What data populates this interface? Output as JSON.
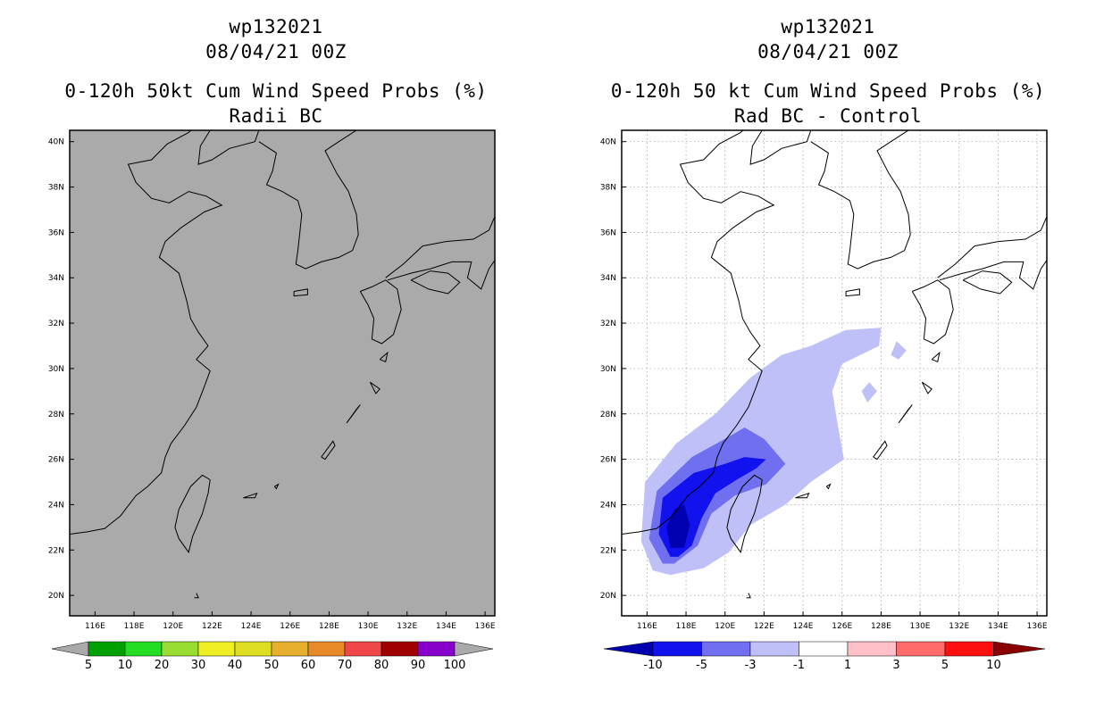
{
  "left_panel": {
    "storm_id": "wp132021",
    "datetime": "08/04/21 00Z",
    "product": "0-120h 50kt Cum Wind Speed Probs (%)",
    "subtitle": "Radii BC",
    "background_color": "#aaaaaa",
    "colorbar": {
      "labels": [
        "5",
        "10",
        "20",
        "30",
        "40",
        "50",
        "60",
        "70",
        "80",
        "90",
        "100"
      ],
      "colors": [
        "#00a000",
        "#22dd22",
        "#99dd33",
        "#eeee22",
        "#dddd22",
        "#e6b02e",
        "#e88a2a",
        "#f04848",
        "#a00000",
        "#8800cc"
      ]
    }
  },
  "right_panel": {
    "storm_id": "wp132021",
    "datetime": "08/04/21 00Z",
    "product": "0-120h 50 kt Cum Wind Speed Probs (%)",
    "subtitle": "Rad BC - Control",
    "colorbar": {
      "labels": [
        "-10",
        "-5",
        "-3",
        "-1",
        "1",
        "3",
        "5",
        "10"
      ],
      "colors": [
        "#0000b0",
        "#1212ee",
        "#6f6ff0",
        "#c0c0f8",
        "#ffffff",
        "#ffc0c8",
        "#ff6a6a",
        "#ff1010",
        "#8a0000"
      ]
    }
  },
  "map": {
    "lat_labels": [
      "40N",
      "38N",
      "36N",
      "34N",
      "32N",
      "30N",
      "28N",
      "26N",
      "24N",
      "22N",
      "20N"
    ],
    "lon_labels": [
      "116E",
      "118E",
      "120E",
      "122E",
      "124E",
      "126E",
      "128E",
      "130E",
      "132E",
      "134E",
      "136E"
    ]
  }
}
